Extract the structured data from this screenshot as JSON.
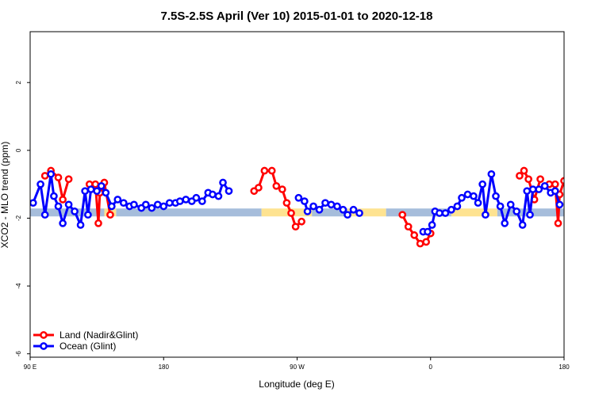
{
  "chart_data": {
    "type": "line",
    "title": "7.5S-2.5S April (Ver 10)   2015-01-01 to 2020-12-18",
    "xlabel": "Longitude (deg E)",
    "ylabel": "XCO2 - MLO trend (ppm)",
    "xlim": [
      90,
      450
    ],
    "ylim": [
      -6.1,
      3.5
    ],
    "xticks": [
      {
        "value": 90,
        "label": "90 E"
      },
      {
        "value": 180,
        "label": "180"
      },
      {
        "value": 270,
        "label": "90 W"
      },
      {
        "value": 360,
        "label": "0"
      },
      {
        "value": 450,
        "label": "180"
      }
    ],
    "yticks": [
      {
        "value": 2,
        "label": "2"
      },
      {
        "value": 0,
        "label": "0"
      },
      {
        "value": -2,
        "label": "-2"
      },
      {
        "value": -4,
        "label": "-4"
      },
      {
        "value": -6,
        "label": "-6"
      }
    ],
    "grid": false,
    "legend_position": "bottom-left",
    "band": {
      "y": -1.83,
      "segments": [
        {
          "x0": 90,
          "x1": 140,
          "surface": "ocean",
          "color": "#a6bddb"
        },
        {
          "x0": 140,
          "x1": 148,
          "surface": "land",
          "color": "#fee391"
        },
        {
          "x0": 148,
          "x1": 246,
          "surface": "ocean",
          "color": "#a6bddb"
        },
        {
          "x0": 246,
          "x1": 280,
          "surface": "land",
          "color": "#fee391"
        },
        {
          "x0": 280,
          "x1": 304,
          "surface": "ocean",
          "color": "#a6bddb"
        },
        {
          "x0": 304,
          "x1": 330,
          "surface": "land",
          "color": "#fee391"
        },
        {
          "x0": 330,
          "x1": 374,
          "surface": "ocean",
          "color": "#a6bddb"
        },
        {
          "x0": 374,
          "x1": 405,
          "surface": "land",
          "color": "#fee391"
        },
        {
          "x0": 405,
          "x1": 450,
          "surface": "ocean",
          "color": "#a6bddb"
        }
      ]
    },
    "series": [
      {
        "name": "Land (Nadir&Glint)",
        "color": "#ff0000",
        "segments": [
          [
            [
              100,
              -0.75
            ],
            [
              104,
              -0.6
            ],
            [
              109,
              -0.8
            ],
            [
              112,
              -1.45
            ],
            [
              116,
              -0.85
            ]
          ],
          [
            [
              130,
              -1.0
            ],
            [
              134,
              -1.0
            ],
            [
              136,
              -2.15
            ],
            [
              137,
              -1.25
            ],
            [
              140,
              -0.95
            ],
            [
              144,
              -1.9
            ]
          ],
          [
            [
              241,
              -1.2
            ],
            [
              244,
              -1.1
            ],
            [
              248,
              -0.6
            ],
            [
              253,
              -0.6
            ],
            [
              256,
              -1.05
            ],
            [
              260,
              -1.15
            ],
            [
              263,
              -1.55
            ],
            [
              266,
              -1.85
            ],
            [
              269,
              -2.25
            ],
            [
              273,
              -2.1
            ]
          ],
          [
            [
              341,
              -1.9
            ],
            [
              345,
              -2.25
            ],
            [
              349,
              -2.5
            ],
            [
              353,
              -2.75
            ],
            [
              357,
              -2.7
            ],
            [
              360,
              -2.45
            ]
          ],
          [
            [
              420,
              -0.75
            ],
            [
              423,
              -0.6
            ],
            [
              426,
              -0.85
            ],
            [
              430,
              -1.45
            ],
            [
              434,
              -0.85
            ]
          ],
          [
            [
              440,
              -1.0
            ],
            [
              444,
              -1.0
            ],
            [
              446,
              -2.15
            ],
            [
              447,
              -1.3
            ],
            [
              450,
              -0.9
            ],
            [
              454,
              -1.9
            ]
          ]
        ]
      },
      {
        "name": "Ocean (Glint)",
        "color": "#0000ff",
        "segments": [
          [
            [
              92,
              -1.55
            ],
            [
              97,
              -1.0
            ],
            [
              100,
              -1.9
            ],
            [
              104,
              -0.7
            ],
            [
              106,
              -1.35
            ],
            [
              109,
              -1.65
            ],
            [
              112,
              -2.15
            ],
            [
              116,
              -1.6
            ],
            [
              120,
              -1.8
            ],
            [
              124,
              -2.2
            ],
            [
              127,
              -1.2
            ],
            [
              129,
              -1.9
            ],
            [
              131,
              -1.15
            ],
            [
              135,
              -1.2
            ],
            [
              138,
              -1.05
            ],
            [
              141,
              -1.25
            ],
            [
              145,
              -1.65
            ],
            [
              149,
              -1.45
            ],
            [
              153,
              -1.55
            ],
            [
              157,
              -1.65
            ],
            [
              160,
              -1.6
            ],
            [
              165,
              -1.7
            ],
            [
              168,
              -1.6
            ],
            [
              172,
              -1.7
            ],
            [
              176,
              -1.6
            ],
            [
              180,
              -1.65
            ],
            [
              184,
              -1.55
            ],
            [
              188,
              -1.55
            ],
            [
              191,
              -1.5
            ],
            [
              195,
              -1.45
            ],
            [
              199,
              -1.5
            ],
            [
              202,
              -1.4
            ],
            [
              206,
              -1.5
            ],
            [
              210,
              -1.25
            ],
            [
              213,
              -1.3
            ],
            [
              217,
              -1.35
            ],
            [
              220,
              -0.95
            ],
            [
              224,
              -1.2
            ]
          ],
          [
            [
              271,
              -1.4
            ],
            [
              275,
              -1.5
            ],
            [
              277,
              -1.8
            ],
            [
              281,
              -1.65
            ],
            [
              285,
              -1.75
            ],
            [
              289,
              -1.55
            ],
            [
              293,
              -1.6
            ],
            [
              297,
              -1.65
            ],
            [
              301,
              -1.75
            ],
            [
              304,
              -1.9
            ],
            [
              308,
              -1.75
            ],
            [
              312,
              -1.85
            ]
          ],
          [
            [
              355,
              -2.4
            ],
            [
              358,
              -2.4
            ],
            [
              361,
              -2.2
            ],
            [
              363,
              -1.8
            ],
            [
              366,
              -1.85
            ],
            [
              370,
              -1.85
            ],
            [
              374,
              -1.75
            ],
            [
              378,
              -1.65
            ],
            [
              381,
              -1.4
            ],
            [
              385,
              -1.3
            ],
            [
              389,
              -1.35
            ],
            [
              392,
              -1.55
            ],
            [
              395,
              -1.0
            ],
            [
              397,
              -1.9
            ],
            [
              401,
              -0.7
            ],
            [
              404,
              -1.35
            ],
            [
              407,
              -1.65
            ],
            [
              410,
              -2.15
            ],
            [
              414,
              -1.6
            ],
            [
              418,
              -1.8
            ],
            [
              422,
              -2.2
            ],
            [
              425,
              -1.2
            ],
            [
              427,
              -1.9
            ],
            [
              429,
              -1.15
            ],
            [
              433,
              -1.15
            ],
            [
              437,
              -1.05
            ],
            [
              441,
              -1.25
            ],
            [
              444,
              -1.2
            ],
            [
              447,
              -1.6
            ]
          ]
        ]
      }
    ]
  }
}
